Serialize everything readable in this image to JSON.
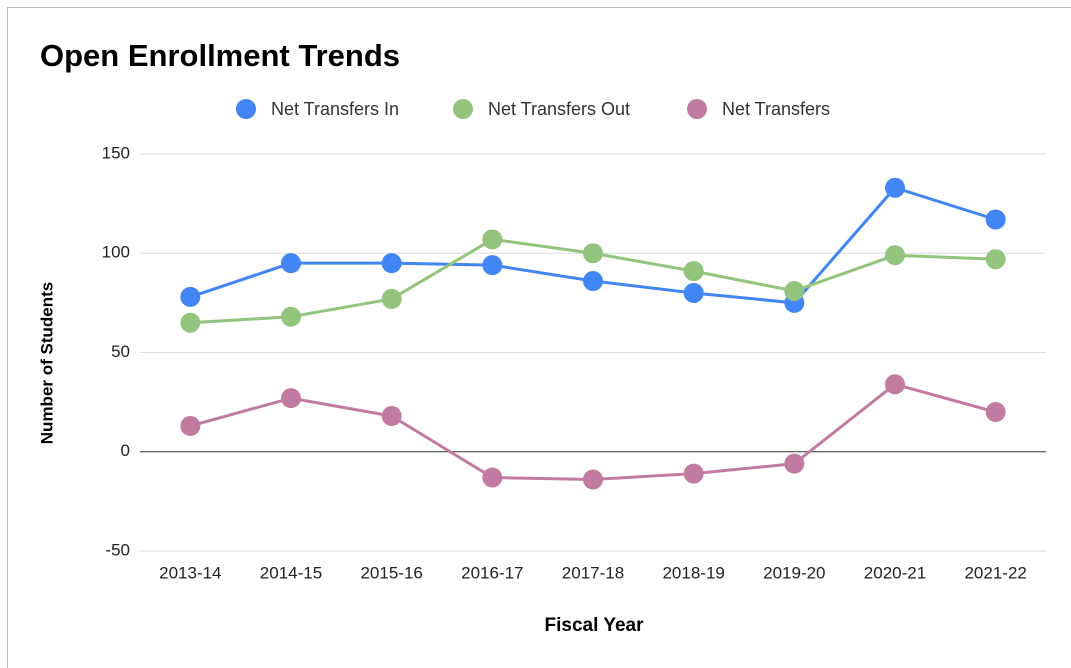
{
  "chart_data": {
    "type": "line",
    "title": "Open Enrollment Trends",
    "x_label": "Fiscal Year",
    "y_label": "Number of Students",
    "categories": [
      "2013-14",
      "2014-15",
      "2015-16",
      "2016-17",
      "2017-18",
      "2018-19",
      "2019-20",
      "2020-21",
      "2021-22"
    ],
    "series": [
      {
        "name": "Net Transfers In",
        "color": "#4285f4",
        "values": [
          78,
          95,
          95,
          94,
          86,
          80,
          75,
          133,
          117
        ]
      },
      {
        "name": "Net Transfers Out",
        "color": "#93c47d",
        "values": [
          65,
          68,
          77,
          107,
          100,
          91,
          81,
          99,
          97
        ]
      },
      {
        "name": "Net Transfers",
        "color": "#c27ba0",
        "values": [
          13,
          27,
          18,
          -13,
          -14,
          -11,
          -6,
          34,
          20
        ]
      }
    ],
    "ylim": [
      -50,
      150
    ],
    "yticks": [
      -50,
      0,
      50,
      100,
      150
    ],
    "grid": true,
    "legend": "top"
  }
}
